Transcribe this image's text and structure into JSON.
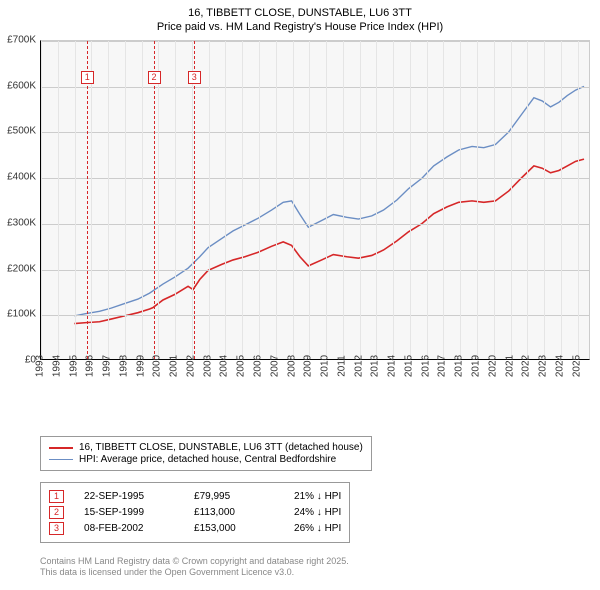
{
  "title_line1": "16, TIBBETT CLOSE, DUNSTABLE, LU6 3TT",
  "title_line2": "Price paid vs. HM Land Registry's House Price Index (HPI)",
  "chart": {
    "type": "line",
    "background_color": "#f7f7f7",
    "grid_color": "#cccccc",
    "xlim": [
      1993,
      2025.8
    ],
    "ylim": [
      0,
      700000
    ],
    "ytick_step": 100000,
    "ytick_labels": [
      "£0",
      "£100K",
      "£200K",
      "£300K",
      "£400K",
      "£500K",
      "£600K",
      "£700K"
    ],
    "xticks": [
      1993,
      1994,
      1995,
      1996,
      1997,
      1998,
      1999,
      2000,
      2001,
      2002,
      2003,
      2004,
      2005,
      2006,
      2007,
      2008,
      2009,
      2010,
      2011,
      2012,
      2013,
      2014,
      2015,
      2016,
      2017,
      2018,
      2019,
      2020,
      2021,
      2022,
      2023,
      2024,
      2025
    ],
    "series": [
      {
        "name": "price_paid",
        "color": "#d62728",
        "width": 1.6,
        "points": [
          [
            1995.0,
            78000
          ],
          [
            1995.7,
            79995
          ],
          [
            1996.5,
            82000
          ],
          [
            1997.2,
            88000
          ],
          [
            1998.0,
            95000
          ],
          [
            1998.8,
            102000
          ],
          [
            1999.5,
            110000
          ],
          [
            1999.7,
            113000
          ],
          [
            2000.3,
            130000
          ],
          [
            2001.0,
            142000
          ],
          [
            2001.8,
            160000
          ],
          [
            2002.1,
            153000
          ],
          [
            2002.5,
            175000
          ],
          [
            2003.0,
            195000
          ],
          [
            2003.8,
            208000
          ],
          [
            2004.5,
            218000
          ],
          [
            2005.2,
            225000
          ],
          [
            2006.0,
            235000
          ],
          [
            2006.8,
            248000
          ],
          [
            2007.5,
            258000
          ],
          [
            2008.0,
            250000
          ],
          [
            2008.5,
            225000
          ],
          [
            2009.0,
            205000
          ],
          [
            2009.8,
            218000
          ],
          [
            2010.5,
            230000
          ],
          [
            2011.3,
            225000
          ],
          [
            2012.0,
            222000
          ],
          [
            2012.8,
            228000
          ],
          [
            2013.5,
            240000
          ],
          [
            2014.3,
            260000
          ],
          [
            2015.0,
            280000
          ],
          [
            2015.8,
            298000
          ],
          [
            2016.5,
            320000
          ],
          [
            2017.3,
            335000
          ],
          [
            2018.0,
            345000
          ],
          [
            2018.8,
            348000
          ],
          [
            2019.5,
            345000
          ],
          [
            2020.2,
            348000
          ],
          [
            2021.0,
            370000
          ],
          [
            2021.8,
            400000
          ],
          [
            2022.5,
            425000
          ],
          [
            2023.0,
            420000
          ],
          [
            2023.5,
            410000
          ],
          [
            2024.0,
            415000
          ],
          [
            2024.5,
            425000
          ],
          [
            2025.0,
            435000
          ],
          [
            2025.5,
            440000
          ]
        ]
      },
      {
        "name": "hpi",
        "color": "#6b8ec4",
        "width": 1.4,
        "points": [
          [
            1995.0,
            95000
          ],
          [
            1995.7,
            100000
          ],
          [
            1996.5,
            105000
          ],
          [
            1997.2,
            112000
          ],
          [
            1998.0,
            122000
          ],
          [
            1998.8,
            132000
          ],
          [
            1999.5,
            145000
          ],
          [
            2000.3,
            165000
          ],
          [
            2001.0,
            180000
          ],
          [
            2001.8,
            200000
          ],
          [
            2002.5,
            225000
          ],
          [
            2003.0,
            245000
          ],
          [
            2003.8,
            265000
          ],
          [
            2004.5,
            282000
          ],
          [
            2005.2,
            295000
          ],
          [
            2006.0,
            310000
          ],
          [
            2006.8,
            328000
          ],
          [
            2007.5,
            345000
          ],
          [
            2008.0,
            348000
          ],
          [
            2008.5,
            318000
          ],
          [
            2009.0,
            290000
          ],
          [
            2009.8,
            305000
          ],
          [
            2010.5,
            318000
          ],
          [
            2011.3,
            312000
          ],
          [
            2012.0,
            308000
          ],
          [
            2012.8,
            315000
          ],
          [
            2013.5,
            328000
          ],
          [
            2014.3,
            350000
          ],
          [
            2015.0,
            375000
          ],
          [
            2015.8,
            398000
          ],
          [
            2016.5,
            425000
          ],
          [
            2017.3,
            445000
          ],
          [
            2018.0,
            460000
          ],
          [
            2018.8,
            468000
          ],
          [
            2019.5,
            465000
          ],
          [
            2020.2,
            472000
          ],
          [
            2021.0,
            500000
          ],
          [
            2021.8,
            540000
          ],
          [
            2022.5,
            575000
          ],
          [
            2023.0,
            568000
          ],
          [
            2023.5,
            555000
          ],
          [
            2024.0,
            565000
          ],
          [
            2024.5,
            580000
          ],
          [
            2025.0,
            592000
          ],
          [
            2025.5,
            600000
          ]
        ]
      }
    ],
    "markers": [
      {
        "n": "1",
        "x": 1995.73
      },
      {
        "n": "2",
        "x": 1999.71
      },
      {
        "n": "3",
        "x": 2002.11
      }
    ]
  },
  "legend": {
    "items": [
      {
        "label": "16, TIBBETT CLOSE, DUNSTABLE, LU6 3TT (detached house)",
        "color": "#d62728",
        "width": 2
      },
      {
        "label": "HPI: Average price, detached house, Central Bedfordshire",
        "color": "#6b8ec4",
        "width": 1.5
      }
    ]
  },
  "sales": [
    {
      "n": "1",
      "date": "22-SEP-1995",
      "price": "£79,995",
      "delta": "21% ↓ HPI"
    },
    {
      "n": "2",
      "date": "15-SEP-1999",
      "price": "£113,000",
      "delta": "24% ↓ HPI"
    },
    {
      "n": "3",
      "date": "08-FEB-2002",
      "price": "£153,000",
      "delta": "26% ↓ HPI"
    }
  ],
  "attribution_line1": "Contains HM Land Registry data © Crown copyright and database right 2025.",
  "attribution_line2": "This data is licensed under the Open Government Licence v3.0."
}
